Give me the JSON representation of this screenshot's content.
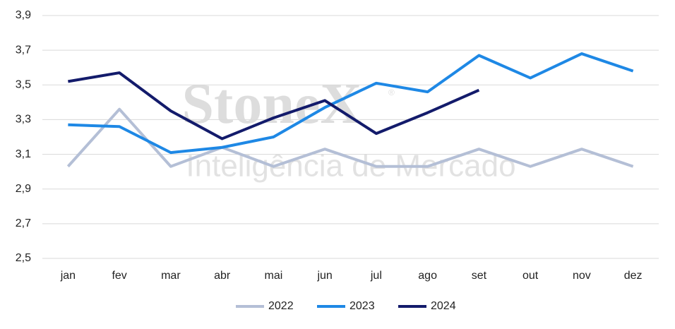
{
  "chart_data": {
    "type": "line",
    "categories": [
      "jan",
      "fev",
      "mar",
      "abr",
      "mai",
      "jun",
      "jul",
      "ago",
      "set",
      "out",
      "nov",
      "dez"
    ],
    "series": [
      {
        "name": "2022",
        "color": "#b4bfd6",
        "values": [
          3.03,
          3.36,
          3.03,
          3.14,
          3.03,
          3.13,
          3.03,
          3.03,
          3.13,
          3.03,
          3.13,
          3.03
        ]
      },
      {
        "name": "2023",
        "color": "#1e88e5",
        "values": [
          3.27,
          3.26,
          3.11,
          3.14,
          3.2,
          3.37,
          3.51,
          3.46,
          3.67,
          3.54,
          3.68,
          3.58
        ]
      },
      {
        "name": "2024",
        "color": "#131b6b",
        "values": [
          3.52,
          3.57,
          3.35,
          3.19,
          3.31,
          3.41,
          3.22,
          3.34,
          3.47,
          null,
          null,
          null
        ]
      }
    ],
    "ylim": [
      2.5,
      3.9
    ],
    "yticks": [
      {
        "value": 2.5,
        "label": "2,5"
      },
      {
        "value": 2.7,
        "label": "2,7"
      },
      {
        "value": 2.9,
        "label": "2,9"
      },
      {
        "value": 3.1,
        "label": "3,1"
      },
      {
        "value": 3.3,
        "label": "3,3"
      },
      {
        "value": 3.5,
        "label": "3,5"
      },
      {
        "value": 3.7,
        "label": "3,7"
      },
      {
        "value": 3.9,
        "label": "3,9"
      }
    ],
    "grid": true,
    "legend": "bottom",
    "watermark": {
      "brand": "StoneX",
      "mark": "®",
      "tagline": "Inteligência de Mercado"
    }
  }
}
